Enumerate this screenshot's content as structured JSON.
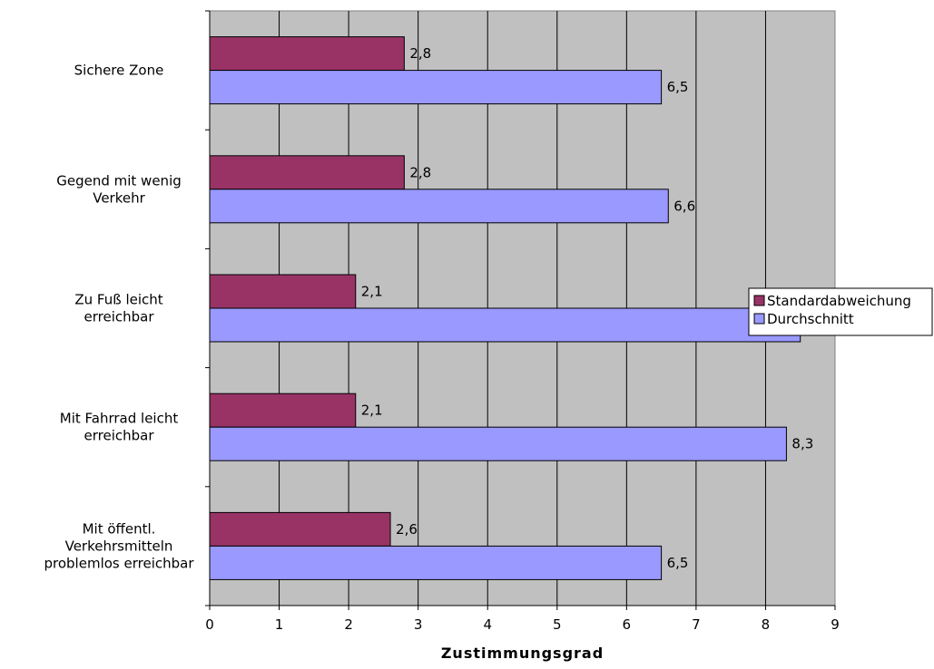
{
  "chart_data": {
    "type": "bar",
    "orientation": "horizontal",
    "categories": [
      "Sichere Zone",
      "Gegend mit wenig Verkehr",
      "Zu Fuß leicht erreichbar",
      "Mit Fahrrad leicht erreichbar",
      "Mit öffentl. Verkehrsmitteln problemlos erreichbar"
    ],
    "category_lines": [
      [
        "Sichere Zone"
      ],
      [
        "Gegend mit wenig",
        "Verkehr"
      ],
      [
        "Zu Fuß leicht",
        "erreichbar"
      ],
      [
        "Mit Fahrrad leicht",
        "erreichbar"
      ],
      [
        "Mit öffentl.",
        "Verkehrsmitteln",
        "problemlos erreichbar"
      ]
    ],
    "series": [
      {
        "name": "Standardabweichung",
        "color": "#993366",
        "values": [
          2.8,
          2.8,
          2.1,
          2.1,
          2.6
        ],
        "labels": [
          "2,8",
          "2,8",
          "2,1",
          "2,1",
          "2,6"
        ]
      },
      {
        "name": "Durchschnitt",
        "color": "#9999FF",
        "values": [
          6.5,
          6.6,
          8.5,
          8.3,
          6.5
        ],
        "labels": [
          "6,5",
          "6,6",
          "",
          "8,3",
          "6,5"
        ]
      }
    ],
    "xlabel": "Zustimmungsgrad",
    "xlim": [
      0,
      9
    ],
    "xticks": [
      0,
      1,
      2,
      3,
      4,
      5,
      6,
      7,
      8,
      9
    ],
    "xtick_labels": [
      "0",
      "1",
      "2",
      "3",
      "4",
      "5",
      "6",
      "7",
      "8",
      "9"
    ],
    "plot_background": "#C0C0C0",
    "grid": "vertical",
    "legend_position": "right"
  }
}
